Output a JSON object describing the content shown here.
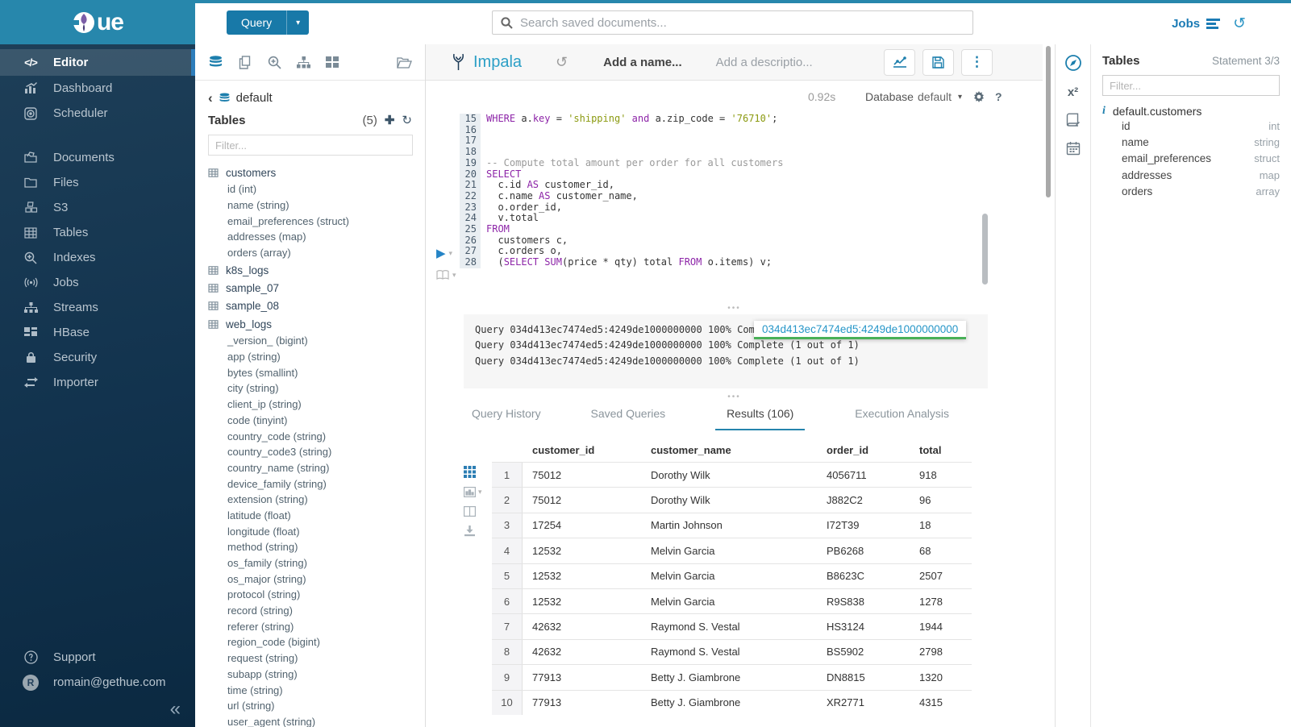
{
  "brand": {
    "logo_text": "ue"
  },
  "topbar": {
    "query_button": "Query",
    "search_placeholder": "Search saved documents...",
    "jobs_label": "Jobs"
  },
  "left_nav": {
    "items": [
      {
        "label": "Editor"
      },
      {
        "label": "Dashboard"
      },
      {
        "label": "Scheduler"
      },
      {
        "label": "Documents"
      },
      {
        "label": "Files"
      },
      {
        "label": "S3"
      },
      {
        "label": "Tables"
      },
      {
        "label": "Indexes"
      },
      {
        "label": "Jobs"
      },
      {
        "label": "Streams"
      },
      {
        "label": "HBase"
      },
      {
        "label": "Security"
      },
      {
        "label": "Importer"
      }
    ],
    "footer": {
      "support": "Support",
      "user": "romain@gethue.com",
      "avatar_letter": "R"
    }
  },
  "db_panel": {
    "breadcrumb": "default",
    "title": "Tables",
    "count": "(5)",
    "filter_placeholder": "Filter...",
    "tables": [
      {
        "name": "customers",
        "columns": [
          "id (int)",
          "name (string)",
          "email_preferences (struct)",
          "addresses (map)",
          "orders (array)"
        ]
      },
      {
        "name": "k8s_logs",
        "columns": []
      },
      {
        "name": "sample_07",
        "columns": []
      },
      {
        "name": "sample_08",
        "columns": []
      },
      {
        "name": "web_logs",
        "columns": [
          "_version_ (bigint)",
          "app (string)",
          "bytes (smallint)",
          "city (string)",
          "client_ip (string)",
          "code (tinyint)",
          "country_code (string)",
          "country_code3 (string)",
          "country_name (string)",
          "device_family (string)",
          "extension (string)",
          "latitude (float)",
          "longitude (float)",
          "method (string)",
          "os_family (string)",
          "os_major (string)",
          "protocol (string)",
          "record (string)",
          "referer (string)",
          "region_code (bigint)",
          "request (string)",
          "subapp (string)",
          "time (string)",
          "url (string)",
          "user_agent (string)"
        ]
      }
    ]
  },
  "editor": {
    "engine": "Impala",
    "name_placeholder": "Add a name...",
    "desc_placeholder": "Add a descriptio...",
    "duration": "0.92s",
    "database_label": "Database",
    "database_value": "default",
    "help_glyph": "?",
    "code_lines": [
      {
        "n": "15",
        "segs": [
          [
            "k",
            "WHERE"
          ],
          [
            "t",
            " a."
          ],
          [
            "k",
            "key"
          ],
          [
            "t",
            " = "
          ],
          [
            "s",
            "'shipping'"
          ],
          [
            "t",
            " "
          ],
          [
            "k",
            "and"
          ],
          [
            "t",
            " a.zip_code = "
          ],
          [
            "s",
            "'76710'"
          ],
          [
            "t",
            ";"
          ]
        ]
      },
      {
        "n": "16",
        "segs": []
      },
      {
        "n": "17",
        "segs": []
      },
      {
        "n": "18",
        "segs": []
      },
      {
        "n": "19",
        "segs": [
          [
            "c",
            "-- Compute total amount per order for all customers"
          ]
        ]
      },
      {
        "n": "20",
        "segs": [
          [
            "k",
            "SELECT"
          ]
        ]
      },
      {
        "n": "21",
        "segs": [
          [
            "t",
            "  c.id "
          ],
          [
            "k",
            "AS"
          ],
          [
            "t",
            " customer_id,"
          ]
        ]
      },
      {
        "n": "22",
        "segs": [
          [
            "t",
            "  c.name "
          ],
          [
            "k",
            "AS"
          ],
          [
            "t",
            " customer_name,"
          ]
        ]
      },
      {
        "n": "23",
        "segs": [
          [
            "t",
            "  o.order_id,"
          ]
        ]
      },
      {
        "n": "24",
        "segs": [
          [
            "t",
            "  v.total"
          ]
        ]
      },
      {
        "n": "25",
        "segs": [
          [
            "k",
            "FROM"
          ]
        ]
      },
      {
        "n": "26",
        "segs": [
          [
            "t",
            "  customers c,"
          ]
        ]
      },
      {
        "n": "27",
        "segs": [
          [
            "t",
            "  c.orders o,"
          ]
        ]
      },
      {
        "n": "28",
        "segs": [
          [
            "t",
            "  ("
          ],
          [
            "k",
            "SELECT"
          ],
          [
            "t",
            " "
          ],
          [
            "k",
            "SUM"
          ],
          [
            "t",
            "(price * qty) total "
          ],
          [
            "k",
            "FROM"
          ],
          [
            "t",
            " o.items) v;"
          ]
        ]
      }
    ],
    "log_lines": [
      "Query 034d413ec7474ed5:4249de1000000000 100% Complete (1 out of 1)",
      "Query 034d413ec7474ed5:4249de1000000000 100% Complete (1 out of 1)",
      "Query 034d413ec7474ed5:4249de1000000000 100% Complete (1 out of 1)"
    ],
    "job_badge": "034d413ec7474ed5:4249de1000000000"
  },
  "tabs": [
    {
      "label": "Query History",
      "active": false
    },
    {
      "label": "Saved Queries",
      "active": false
    },
    {
      "label": "Results (106)",
      "active": true
    },
    {
      "label": "Execution Analysis",
      "active": false
    }
  ],
  "results": {
    "headers": [
      "customer_id",
      "customer_name",
      "order_id",
      "total"
    ],
    "rows": [
      [
        "1",
        "75012",
        "Dorothy Wilk",
        "4056711",
        "918"
      ],
      [
        "2",
        "75012",
        "Dorothy Wilk",
        "J882C2",
        "96"
      ],
      [
        "3",
        "17254",
        "Martin Johnson",
        "I72T39",
        "18"
      ],
      [
        "4",
        "12532",
        "Melvin Garcia",
        "PB6268",
        "68"
      ],
      [
        "5",
        "12532",
        "Melvin Garcia",
        "B8623C",
        "2507"
      ],
      [
        "6",
        "12532",
        "Melvin Garcia",
        "R9S838",
        "1278"
      ],
      [
        "7",
        "42632",
        "Raymond S. Vestal",
        "HS3124",
        "1944"
      ],
      [
        "8",
        "42632",
        "Raymond S. Vestal",
        "BS5902",
        "2798"
      ],
      [
        "9",
        "77913",
        "Betty J. Giambrone",
        "DN8815",
        "1320"
      ],
      [
        "10",
        "77913",
        "Betty J. Giambrone",
        "XR2771",
        "4315"
      ]
    ]
  },
  "right_panel": {
    "title": "Tables",
    "statement": "Statement 3/3",
    "filter_placeholder": "Filter...",
    "table_name": "default.customers",
    "columns": [
      {
        "name": "id",
        "type": "int"
      },
      {
        "name": "name",
        "type": "string"
      },
      {
        "name": "email_preferences",
        "type": "struct"
      },
      {
        "name": "addresses",
        "type": "map"
      },
      {
        "name": "orders",
        "type": "array"
      }
    ]
  },
  "colors": {
    "brand": "#2787ac",
    "accent": "#1d7fad",
    "link": "#2696c8",
    "success": "#48b057"
  }
}
